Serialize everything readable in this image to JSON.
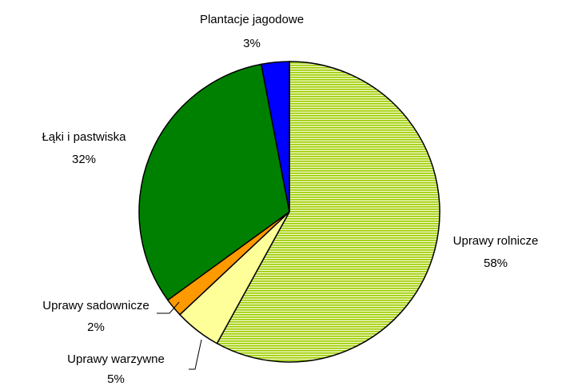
{
  "chart_data": {
    "type": "pie",
    "categories": [
      "Uprawy rolnicze",
      "Uprawy warzywne",
      "Uprawy sadownicze",
      "Łąki i pastwiska",
      "Plantacje jagodowe"
    ],
    "values": [
      58,
      5,
      2,
      32,
      3
    ],
    "value_labels": [
      "58%",
      "5%",
      "2%",
      "32%",
      "3%"
    ],
    "colors": [
      "#99cc00",
      "#ffff99",
      "#ff9900",
      "#008000",
      "#0000ff"
    ],
    "patterns": [
      "horizontal-lines",
      null,
      null,
      null,
      null
    ],
    "start_angle": 0,
    "direction": "clockwise"
  }
}
